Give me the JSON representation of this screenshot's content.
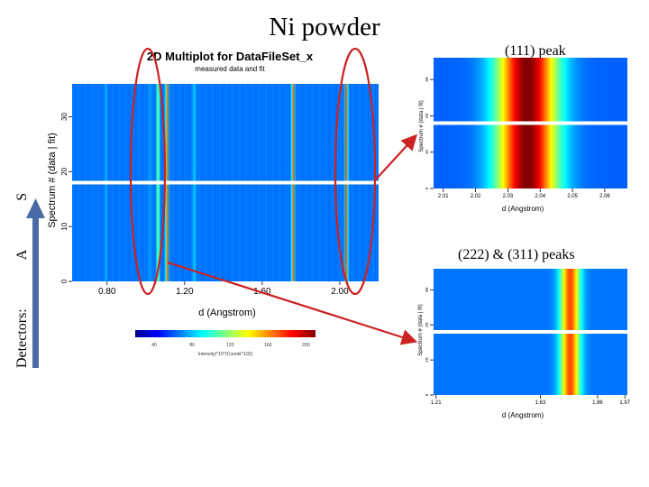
{
  "slide": {
    "title": "Ni powder",
    "label_111": "(111) peak",
    "label_222_311": "(222) & (311) peaks",
    "side_label": {
      "prefix": "Detectors:",
      "a": "A",
      "s": "S"
    },
    "colors": {
      "arrow": "#4a6aa5",
      "annotation": "#cc2222",
      "blank_band": "#ffffff"
    }
  },
  "chart_data": [
    {
      "type": "heatmap",
      "title": "2D Multiplot for DataFileSet_x",
      "subtitle": "measured data and fit",
      "xlabel": "d (Angstrom)",
      "ylabel": "Spectrum # (data | fit)",
      "xlim": [
        0.62,
        2.2
      ],
      "ylim": [
        0,
        36
      ],
      "xticks": [
        0.8,
        1.2,
        1.6,
        2.0
      ],
      "xtick_labels": [
        "0.80",
        "1.20",
        "1.60",
        "2.00"
      ],
      "yticks": [
        0,
        10,
        20,
        30
      ],
      "ytick_labels": [
        "0",
        "10",
        "20",
        "30"
      ],
      "separator_y": 18,
      "peaks": [
        {
          "d": 0.74,
          "level": 0.25
        },
        {
          "d": 0.795,
          "level": 0.3
        },
        {
          "d": 1.02,
          "level": 0.3
        },
        {
          "d": 1.063,
          "level": 0.55
        },
        {
          "d": 1.11,
          "level": 0.8
        },
        {
          "d": 1.25,
          "level": 0.35
        },
        {
          "d": 1.76,
          "level": 0.8
        },
        {
          "d": 2.034,
          "level": 0.8
        }
      ],
      "colorbar": {
        "ticks": [
          40,
          80,
          120,
          160,
          200
        ],
        "tick_labels": [
          "40",
          "80",
          "120",
          "160",
          "200"
        ],
        "label": "Intensity(*10^(Counts^1/2))"
      }
    },
    {
      "type": "heatmap",
      "title": "",
      "xlabel": "d (Angstrom)",
      "ylabel": "Spectrum # (data | fit)",
      "xlim": [
        2.007,
        2.067
      ],
      "ylim": [
        0,
        36
      ],
      "xticks": [
        2.01,
        2.02,
        2.03,
        2.04,
        2.05,
        2.06
      ],
      "xtick_labels": [
        "2.01",
        "2.02",
        "2.03",
        "2.04",
        "2.05",
        "2.06"
      ],
      "yticks": [
        0,
        10,
        20,
        30
      ],
      "ytick_labels": [
        "0",
        "10",
        "20",
        "30"
      ],
      "separator_y": 18,
      "peaks": [
        {
          "d": 2.036,
          "width": 0.0065,
          "level": 1.0
        }
      ]
    },
    {
      "type": "heatmap",
      "title": "",
      "xlabel": "d (Angstrom)",
      "ylabel": "Spectrum # (data | fit)",
      "xlim": [
        1.2,
        1.98
      ],
      "ylim": [
        0,
        36
      ],
      "xticks": [
        1.21,
        1.63,
        1.86,
        1.97
      ],
      "xtick_labels": [
        "1.21",
        "1.63",
        "1.86",
        "1.97"
      ],
      "yticks": [
        0,
        10,
        20,
        30
      ],
      "ytick_labels": [
        "0",
        "10",
        "20",
        "30"
      ],
      "separator_y": 18,
      "peaks": [
        {
          "d": 1.75,
          "width": 0.028,
          "level": 0.8
        }
      ]
    }
  ]
}
